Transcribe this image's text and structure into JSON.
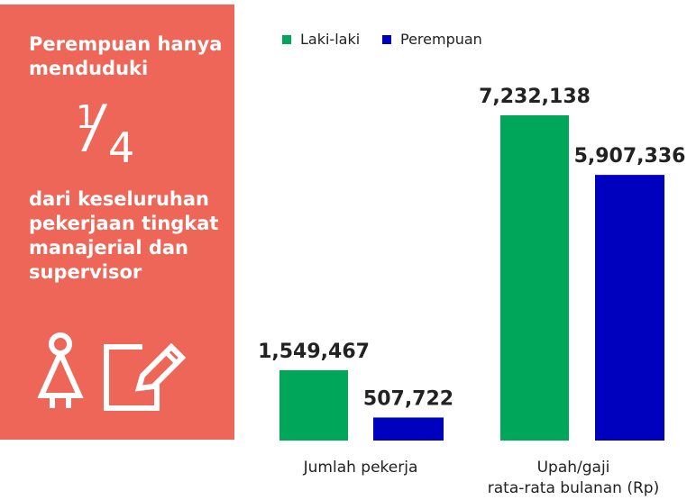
{
  "panel": {
    "top_text": "Perempuan hanya menduduki",
    "fraction_numerator": "1",
    "fraction_denominator": "4",
    "bottom_text": "dari keseluruhan pekerjaan tingkat manajerial dan supervisor",
    "icons": [
      "woman-icon",
      "edit-document-icon"
    ],
    "color": "#ed6658"
  },
  "chart_data": {
    "type": "bar",
    "legend": {
      "placement": "top",
      "entries": [
        "Laki-laki",
        "Perempuan"
      ]
    },
    "series": [
      {
        "name": "Laki-laki",
        "color": "#00a65a",
        "values": [
          1549467,
          7232138
        ]
      },
      {
        "name": "Perempuan",
        "color": "#0000bf",
        "values": [
          507722,
          5907336
        ]
      }
    ],
    "groups": [
      {
        "label_lines": [
          "Jumlah pekerja"
        ],
        "max": 1549467
      },
      {
        "label_lines": [
          "Upah/gaji",
          "rata-rata bulanan (Rp)"
        ],
        "max": 7232138
      }
    ],
    "value_labels": [
      [
        "1,549,467",
        "507,722"
      ],
      [
        "7,232,138",
        "5,907,336"
      ]
    ],
    "grid": false
  }
}
